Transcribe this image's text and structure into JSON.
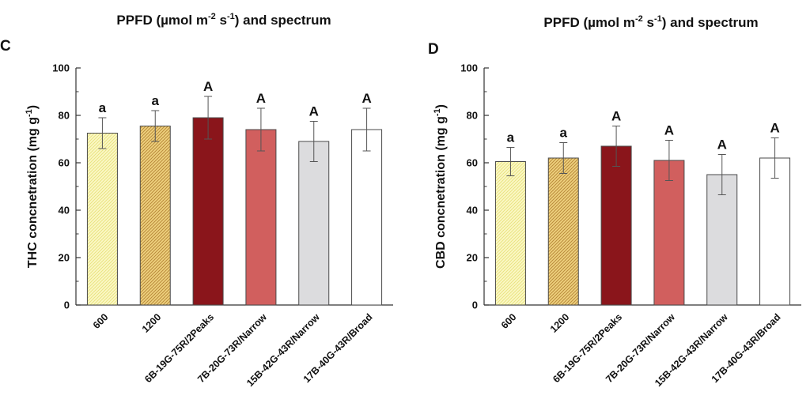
{
  "chart_data": [
    {
      "type": "bar",
      "panel_label": "C",
      "title_main": "PPFD (µmol m",
      "title_sup1": "-2",
      "title_mid": " s",
      "title_sup2": "-1",
      "title_end": ") and spectrum",
      "ylabel_main": "THC concnetration (mg g",
      "ylabel_sup": "-1",
      "ylabel_end": ")",
      "ylim": [
        0,
        100
      ],
      "yticks": [
        "0",
        "20",
        "40",
        "60",
        "80",
        "100"
      ],
      "categories": [
        "600",
        "1200",
        "6B-19G-75R/2Peaks",
        "7B-20G-73R/Narrow",
        "15B-42G-43R/Narrow",
        "17B-40G-43R/Broad"
      ],
      "values": [
        72.5,
        75.5,
        79,
        74,
        69,
        74
      ],
      "errors": [
        6.5,
        6.5,
        9,
        9,
        8.5,
        9
      ],
      "labels": [
        "a",
        "a",
        "A",
        "A",
        "A",
        "A"
      ],
      "colors": [
        "#fbf8c6",
        "#e9c76c",
        "#8a151b",
        "#d15f5e",
        "#dcdcde",
        "#ffffff"
      ],
      "patterns": [
        "hatch-light",
        "hatch-gold",
        "none",
        "none",
        "none",
        "none"
      ]
    },
    {
      "type": "bar",
      "panel_label": "D",
      "title_main": "PPFD (µmol m",
      "title_sup1": "-2",
      "title_mid": " s",
      "title_sup2": "-1",
      "title_end": ") and spectrum",
      "ylabel_main": "CBD concnetration (mg g",
      "ylabel_sup": "-1",
      "ylabel_end": ")",
      "ylim": [
        0,
        100
      ],
      "yticks": [
        "0",
        "20",
        "40",
        "60",
        "80",
        "100"
      ],
      "categories": [
        "600",
        "1200",
        "6B-19G-75R/2Peaks",
        "7B-20G-73R/Narrow",
        "15B-42G-43R/Narrow",
        "17B-40G-43R/Broad"
      ],
      "values": [
        60.5,
        62,
        67,
        61,
        55,
        62
      ],
      "errors": [
        6,
        6.5,
        8.5,
        8.5,
        8.5,
        8.5
      ],
      "labels": [
        "a",
        "a",
        "A",
        "A",
        "A",
        "A"
      ],
      "colors": [
        "#fbf8c6",
        "#e9c76c",
        "#8a151b",
        "#d15f5e",
        "#dcdcde",
        "#ffffff"
      ],
      "patterns": [
        "hatch-light",
        "hatch-gold",
        "none",
        "none",
        "none",
        "none"
      ]
    }
  ]
}
